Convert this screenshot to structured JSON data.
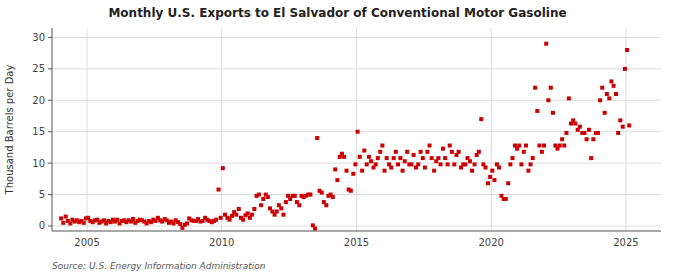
{
  "chart_data": {
    "type": "scatter",
    "title": "Monthly U.S. Exports to El Salvador of Conventional Motor Gasoline",
    "ylabel": "Thousand Barrels per Day",
    "source": "Source: U.S. Energy Information Administration",
    "color": "#CC0000",
    "marker": "square",
    "grid": true,
    "xlim": [
      2003.7,
      2026.3
    ],
    "ylim": [
      -0.8,
      31.5
    ],
    "xticks": [
      2005,
      2010,
      2015,
      2020,
      2025
    ],
    "yticks": [
      0,
      5,
      10,
      15,
      20,
      25,
      30
    ],
    "x": [
      2004.04,
      2004.12,
      2004.21,
      2004.29,
      2004.38,
      2004.46,
      2004.54,
      2004.63,
      2004.71,
      2004.79,
      2004.88,
      2004.96,
      2005.04,
      2005.12,
      2005.21,
      2005.29,
      2005.38,
      2005.46,
      2005.54,
      2005.63,
      2005.71,
      2005.79,
      2005.88,
      2005.96,
      2006.04,
      2006.12,
      2006.21,
      2006.29,
      2006.38,
      2006.46,
      2006.54,
      2006.63,
      2006.71,
      2006.79,
      2006.88,
      2006.96,
      2007.04,
      2007.12,
      2007.21,
      2007.29,
      2007.38,
      2007.46,
      2007.54,
      2007.63,
      2007.71,
      2007.79,
      2007.88,
      2007.96,
      2008.04,
      2008.12,
      2008.21,
      2008.29,
      2008.38,
      2008.46,
      2008.54,
      2008.63,
      2008.71,
      2008.79,
      2008.88,
      2008.96,
      2009.04,
      2009.12,
      2009.21,
      2009.29,
      2009.38,
      2009.46,
      2009.54,
      2009.63,
      2009.71,
      2009.79,
      2009.88,
      2009.96,
      2010.04,
      2010.12,
      2010.21,
      2010.29,
      2010.38,
      2010.46,
      2010.54,
      2010.63,
      2010.71,
      2010.79,
      2010.88,
      2010.96,
      2011.04,
      2011.12,
      2011.21,
      2011.29,
      2011.38,
      2011.46,
      2011.54,
      2011.63,
      2011.71,
      2011.79,
      2011.88,
      2011.96,
      2012.04,
      2012.12,
      2012.21,
      2012.29,
      2012.38,
      2012.46,
      2012.54,
      2012.63,
      2012.71,
      2012.79,
      2012.88,
      2012.96,
      2013.04,
      2013.12,
      2013.21,
      2013.29,
      2013.38,
      2013.46,
      2013.54,
      2013.63,
      2013.71,
      2013.79,
      2013.88,
      2013.96,
      2014.04,
      2014.12,
      2014.21,
      2014.29,
      2014.38,
      2014.46,
      2014.54,
      2014.63,
      2014.71,
      2014.79,
      2014.88,
      2014.96,
      2015.04,
      2015.12,
      2015.21,
      2015.29,
      2015.38,
      2015.46,
      2015.54,
      2015.63,
      2015.71,
      2015.79,
      2015.88,
      2015.96,
      2016.04,
      2016.12,
      2016.21,
      2016.29,
      2016.38,
      2016.46,
      2016.54,
      2016.63,
      2016.71,
      2016.79,
      2016.88,
      2016.96,
      2017.04,
      2017.12,
      2017.21,
      2017.29,
      2017.38,
      2017.46,
      2017.54,
      2017.63,
      2017.71,
      2017.79,
      2017.88,
      2017.96,
      2018.04,
      2018.12,
      2018.21,
      2018.29,
      2018.38,
      2018.46,
      2018.54,
      2018.63,
      2018.71,
      2018.79,
      2018.88,
      2018.96,
      2019.04,
      2019.12,
      2019.21,
      2019.29,
      2019.38,
      2019.46,
      2019.54,
      2019.63,
      2019.71,
      2019.79,
      2019.88,
      2019.96,
      2020.04,
      2020.12,
      2020.21,
      2020.29,
      2020.38,
      2020.46,
      2020.54,
      2020.63,
      2020.71,
      2020.79,
      2020.88,
      2020.96,
      2021.04,
      2021.12,
      2021.21,
      2021.29,
      2021.38,
      2021.46,
      2021.54,
      2021.63,
      2021.71,
      2021.79,
      2021.88,
      2021.96,
      2022.04,
      2022.12,
      2022.21,
      2022.29,
      2022.38,
      2022.46,
      2022.54,
      2022.63,
      2022.71,
      2022.79,
      2022.88,
      2022.96,
      2023.04,
      2023.12,
      2023.21,
      2023.29,
      2023.38,
      2023.46,
      2023.54,
      2023.63,
      2023.71,
      2023.79,
      2023.88,
      2023.96,
      2024.04,
      2024.12,
      2024.21,
      2024.29,
      2024.38,
      2024.46,
      2024.54,
      2024.63,
      2024.71,
      2024.79,
      2024.88,
      2024.96,
      2025.04,
      2025.12
    ],
    "values": [
      1.2,
      0.5,
      1.5,
      0.8,
      0.4,
      1.0,
      0.7,
      0.9,
      0.6,
      0.8,
      0.5,
      1.2,
      1.3,
      0.8,
      0.6,
      0.9,
      1.0,
      0.5,
      0.7,
      0.9,
      0.4,
      0.8,
      0.6,
      1.0,
      0.7,
      1.0,
      0.4,
      0.8,
      0.9,
      0.6,
      0.9,
      0.7,
      1.1,
      0.5,
      0.8,
      1.0,
      0.9,
      0.7,
      0.4,
      0.8,
      0.6,
      1.0,
      0.8,
      1.3,
      0.9,
      0.7,
      1.1,
      0.9,
      0.5,
      0.7,
      0.4,
      0.9,
      0.6,
      0.3,
      -0.3,
      0.2,
      0.4,
      1.2,
      0.9,
      0.8,
      0.8,
      1.1,
      0.7,
      0.8,
      1.3,
      1.0,
      0.8,
      0.6,
      0.8,
      1.0,
      5.8,
      1.3,
      9.2,
      1.8,
      1.3,
      1.0,
      1.6,
      2.2,
      1.8,
      2.7,
      1.3,
      1.0,
      1.7,
      2.0,
      1.3,
      1.8,
      2.7,
      4.8,
      5.0,
      3.3,
      4.3,
      5.0,
      4.6,
      2.8,
      2.3,
      1.8,
      2.3,
      3.3,
      2.8,
      1.8,
      3.8,
      4.8,
      4.3,
      4.8,
      4.8,
      3.8,
      3.3,
      4.8,
      4.6,
      4.8,
      5.0,
      5.0,
      0.1,
      -0.4,
      14.0,
      5.6,
      5.3,
      3.8,
      3.3,
      4.8,
      5.0,
      4.6,
      9.0,
      7.3,
      11.0,
      11.5,
      11.0,
      8.8,
      5.8,
      5.6,
      8.3,
      9.8,
      15.0,
      11.0,
      8.8,
      12.0,
      9.8,
      11.0,
      10.3,
      9.3,
      9.8,
      10.8,
      11.8,
      12.8,
      8.8,
      10.8,
      9.8,
      9.3,
      10.8,
      11.8,
      9.8,
      10.8,
      8.8,
      10.3,
      11.8,
      9.8,
      9.8,
      11.3,
      9.3,
      9.8,
      11.8,
      10.8,
      9.3,
      11.8,
      12.8,
      10.8,
      8.8,
      10.3,
      10.8,
      9.8,
      12.3,
      10.8,
      9.8,
      12.8,
      11.8,
      9.8,
      11.3,
      11.8,
      9.3,
      9.8,
      9.8,
      10.8,
      10.3,
      8.8,
      9.8,
      11.3,
      11.8,
      17.0,
      9.8,
      9.3,
      6.8,
      7.8,
      8.8,
      7.3,
      9.8,
      9.3,
      4.8,
      4.3,
      4.3,
      6.8,
      9.8,
      10.8,
      12.8,
      12.3,
      12.8,
      9.8,
      11.8,
      12.8,
      8.8,
      9.8,
      10.8,
      22.0,
      18.3,
      12.8,
      11.8,
      12.8,
      29.0,
      20.0,
      22.0,
      18.0,
      12.8,
      12.3,
      12.8,
      13.8,
      12.8,
      14.8,
      20.3,
      16.3,
      16.8,
      16.3,
      15.3,
      15.8,
      14.8,
      14.8,
      13.8,
      15.3,
      10.8,
      13.8,
      14.8,
      14.8,
      20.0,
      22.0,
      18.0,
      21.0,
      20.3,
      23.0,
      22.3,
      21.0,
      14.8,
      16.8,
      15.8,
      25.0,
      28.0,
      16.0
    ]
  }
}
